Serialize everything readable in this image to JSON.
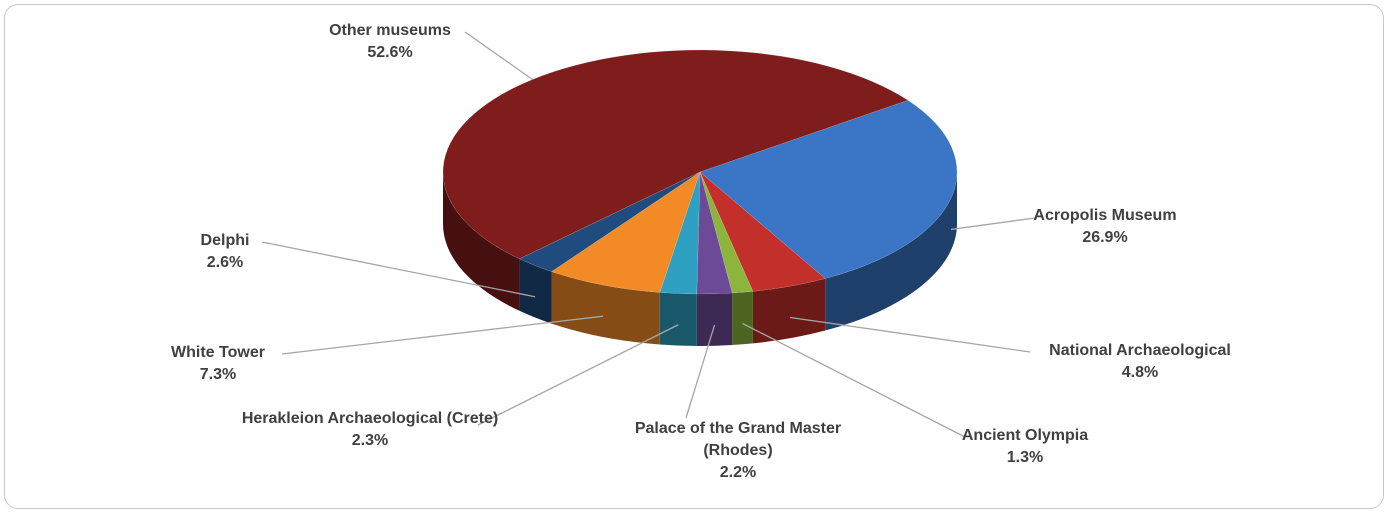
{
  "chart_data": {
    "type": "pie3d",
    "categories": [
      "Acropolis Museum",
      "National Archaeological",
      "Ancient Olympia",
      "Palace of the Grand Master (Rhodes)",
      "Herakleion Archaeological (Crete)",
      "White Tower",
      "Delphi",
      "Other museums"
    ],
    "values": [
      26.9,
      4.8,
      1.3,
      2.2,
      2.3,
      7.3,
      2.6,
      52.6
    ],
    "value_labels": [
      "26.9%",
      "4.8%",
      "1.3%",
      "2.2%",
      "2.3%",
      "7.3%",
      "2.6%",
      "52.6%"
    ],
    "colors": [
      "#3b75c5",
      "#c3302c",
      "#8db53c",
      "#6d4a98",
      "#2ea0c2",
      "#f28b26",
      "#1f4b7e",
      "#7f1d1d"
    ]
  }
}
